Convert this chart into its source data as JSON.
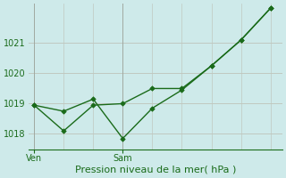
{
  "line1_x": [
    0,
    1,
    2,
    3,
    4,
    5,
    6,
    7,
    8
  ],
  "line1_y": [
    1018.95,
    1018.75,
    1019.15,
    1017.85,
    1018.85,
    1019.45,
    1020.25,
    1021.1,
    1022.15
  ],
  "line2_x": [
    0,
    1,
    2,
    3,
    4,
    5,
    6,
    7,
    8
  ],
  "line2_y": [
    1018.95,
    1018.1,
    1018.95,
    1019.0,
    1019.5,
    1019.5,
    1020.25,
    1021.1,
    1022.15
  ],
  "ven_x": 0,
  "sam_x": 3,
  "yticks": [
    1018,
    1019,
    1020,
    1021
  ],
  "xtick_positions": [
    0,
    3
  ],
  "xtick_labels": [
    "Ven",
    "Sam"
  ],
  "xlabel": "Pression niveau de la mer( hPa )",
  "ymin": 1017.5,
  "ymax": 1022.3,
  "xmin": -0.2,
  "xmax": 8.4,
  "bg_color": "#ceeaea",
  "line_color": "#1a6b1a",
  "grid_color": "#c0c8c0",
  "vline_color": "#a0a8a0",
  "markersize": 2.8,
  "linewidth": 1.0,
  "xlabel_fontsize": 8,
  "tick_fontsize": 7
}
